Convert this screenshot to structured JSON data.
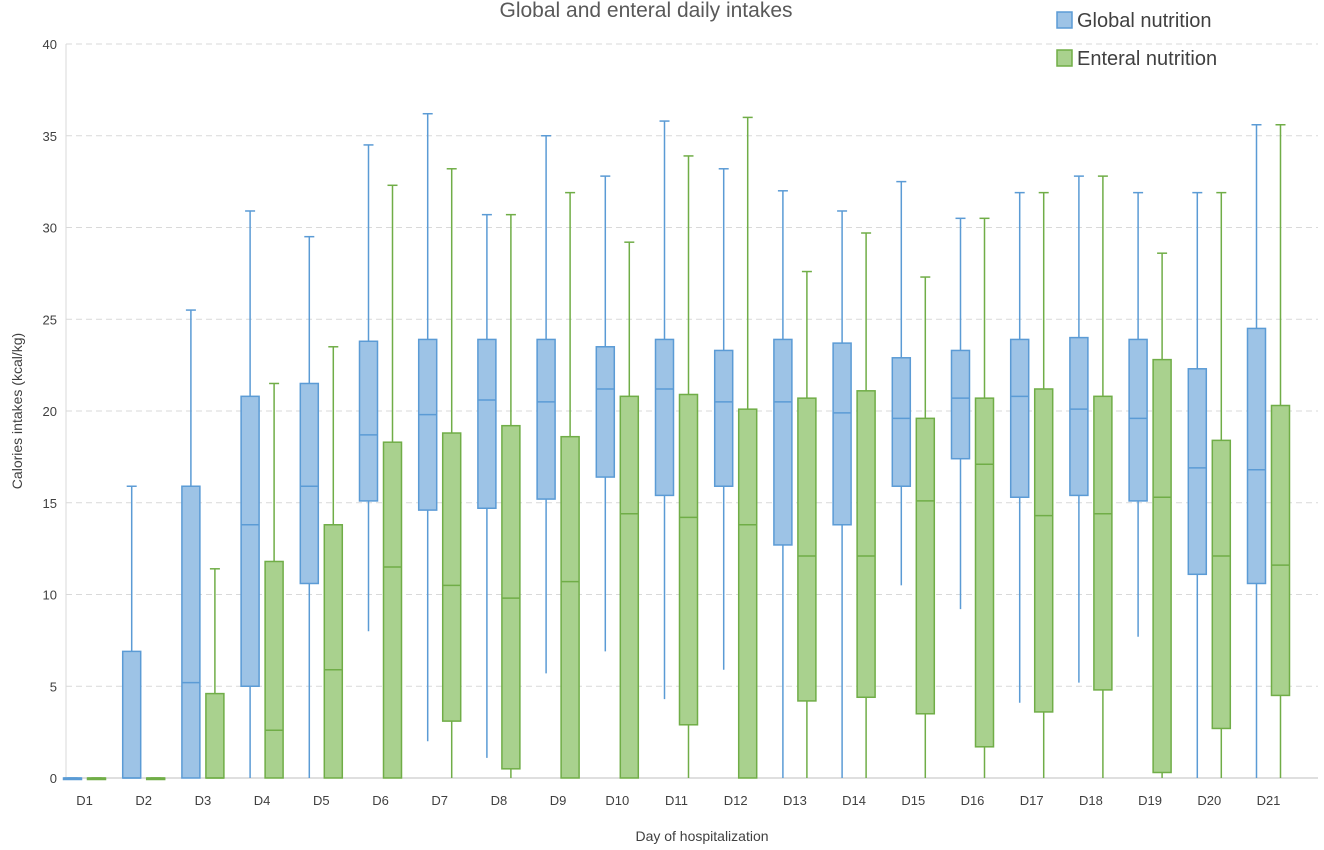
{
  "chart_data": {
    "type": "box",
    "title": "Global and enteral daily intakes",
    "xlabel": "Day of hospitalization",
    "ylabel": "Calories intakes (kcal/kg)",
    "ylim": [
      0,
      40
    ],
    "yticks": [
      0,
      5,
      10,
      15,
      20,
      25,
      30,
      35,
      40
    ],
    "grid": true,
    "legend_position": "top-right",
    "categories": [
      "D1",
      "D2",
      "D3",
      "D4",
      "D5",
      "D6",
      "D7",
      "D8",
      "D9",
      "D10",
      "D11",
      "D12",
      "D13",
      "D14",
      "D15",
      "D16",
      "D17",
      "D18",
      "D19",
      "D20",
      "D21"
    ],
    "series": [
      {
        "name": "Global nutrition",
        "color_fill": "#9dc3e6",
        "color_stroke": "#5b9bd5",
        "boxes": [
          {
            "min": 0,
            "q1": 0,
            "median": 0,
            "q3": 0,
            "max": 0
          },
          {
            "min": 0,
            "q1": 0,
            "median": 0,
            "q3": 6.9,
            "max": 15.9
          },
          {
            "min": 0,
            "q1": 0,
            "median": 5.2,
            "q3": 15.9,
            "max": 25.5
          },
          {
            "min": 0,
            "q1": 5.0,
            "median": 13.8,
            "q3": 20.8,
            "max": 30.9
          },
          {
            "min": 0,
            "q1": 10.6,
            "median": 15.9,
            "q3": 21.5,
            "max": 29.5
          },
          {
            "min": 8.0,
            "q1": 15.1,
            "median": 18.7,
            "q3": 23.8,
            "max": 34.5
          },
          {
            "min": 2.0,
            "q1": 14.6,
            "median": 19.8,
            "q3": 23.9,
            "max": 36.2
          },
          {
            "min": 1.1,
            "q1": 14.7,
            "median": 20.6,
            "q3": 23.9,
            "max": 30.7
          },
          {
            "min": 5.7,
            "q1": 15.2,
            "median": 20.5,
            "q3": 23.9,
            "max": 35.0
          },
          {
            "min": 6.9,
            "q1": 16.4,
            "median": 21.2,
            "q3": 23.5,
            "max": 32.8
          },
          {
            "min": 4.3,
            "q1": 15.4,
            "median": 21.2,
            "q3": 23.9,
            "max": 35.8
          },
          {
            "min": 5.9,
            "q1": 15.9,
            "median": 20.5,
            "q3": 23.3,
            "max": 33.2
          },
          {
            "min": 0,
            "q1": 12.7,
            "median": 20.5,
            "q3": 23.9,
            "max": 32.0
          },
          {
            "min": 0,
            "q1": 13.8,
            "median": 19.9,
            "q3": 23.7,
            "max": 30.9
          },
          {
            "min": 10.5,
            "q1": 15.9,
            "median": 19.6,
            "q3": 22.9,
            "max": 32.5
          },
          {
            "min": 9.2,
            "q1": 17.4,
            "median": 20.7,
            "q3": 23.3,
            "max": 30.5
          },
          {
            "min": 4.1,
            "q1": 15.3,
            "median": 20.8,
            "q3": 23.9,
            "max": 31.9
          },
          {
            "min": 5.2,
            "q1": 15.4,
            "median": 20.1,
            "q3": 24.0,
            "max": 32.8
          },
          {
            "min": 7.7,
            "q1": 15.1,
            "median": 19.6,
            "q3": 23.9,
            "max": 31.9
          },
          {
            "min": 0,
            "q1": 11.1,
            "median": 16.9,
            "q3": 22.3,
            "max": 31.9
          },
          {
            "min": 0,
            "q1": 10.6,
            "median": 16.8,
            "q3": 24.5,
            "max": 35.6
          }
        ]
      },
      {
        "name": "Enteral nutrition",
        "color_fill": "#a9d18e",
        "color_stroke": "#70ad47",
        "boxes": [
          {
            "min": 0,
            "q1": 0,
            "median": 0,
            "q3": 0,
            "max": 0
          },
          {
            "min": 0,
            "q1": 0,
            "median": 0,
            "q3": 0,
            "max": 0
          },
          {
            "min": 0,
            "q1": 0,
            "median": 0,
            "q3": 4.6,
            "max": 11.4
          },
          {
            "min": 0,
            "q1": 0,
            "median": 2.6,
            "q3": 11.8,
            "max": 21.5
          },
          {
            "min": 0,
            "q1": 0,
            "median": 5.9,
            "q3": 13.8,
            "max": 23.5
          },
          {
            "min": 0,
            "q1": 0,
            "median": 11.5,
            "q3": 18.3,
            "max": 32.3
          },
          {
            "min": 0,
            "q1": 3.1,
            "median": 10.5,
            "q3": 18.8,
            "max": 33.2
          },
          {
            "min": 0,
            "q1": 0.5,
            "median": 9.8,
            "q3": 19.2,
            "max": 30.7
          },
          {
            "min": 0,
            "q1": 0,
            "median": 10.7,
            "q3": 18.6,
            "max": 31.9
          },
          {
            "min": 0,
            "q1": 0,
            "median": 14.4,
            "q3": 20.8,
            "max": 29.2
          },
          {
            "min": 0,
            "q1": 2.9,
            "median": 14.2,
            "q3": 20.9,
            "max": 33.9
          },
          {
            "min": 0,
            "q1": 0,
            "median": 13.8,
            "q3": 20.1,
            "max": 36.0
          },
          {
            "min": 0,
            "q1": 4.2,
            "median": 12.1,
            "q3": 20.7,
            "max": 27.6
          },
          {
            "min": 0,
            "q1": 4.4,
            "median": 12.1,
            "q3": 21.1,
            "max": 29.7
          },
          {
            "min": 0,
            "q1": 3.5,
            "median": 15.1,
            "q3": 19.6,
            "max": 27.3
          },
          {
            "min": 0,
            "q1": 1.7,
            "median": 17.1,
            "q3": 20.7,
            "max": 30.5
          },
          {
            "min": 0,
            "q1": 3.6,
            "median": 14.3,
            "q3": 21.2,
            "max": 31.9
          },
          {
            "min": 0,
            "q1": 4.8,
            "median": 14.4,
            "q3": 20.8,
            "max": 32.8
          },
          {
            "min": 0,
            "q1": 0.3,
            "median": 15.3,
            "q3": 22.8,
            "max": 28.6
          },
          {
            "min": 0,
            "q1": 2.7,
            "median": 12.1,
            "q3": 18.4,
            "max": 31.9
          },
          {
            "min": 0,
            "q1": 4.5,
            "median": 11.6,
            "q3": 20.3,
            "max": 35.6
          }
        ]
      }
    ]
  }
}
